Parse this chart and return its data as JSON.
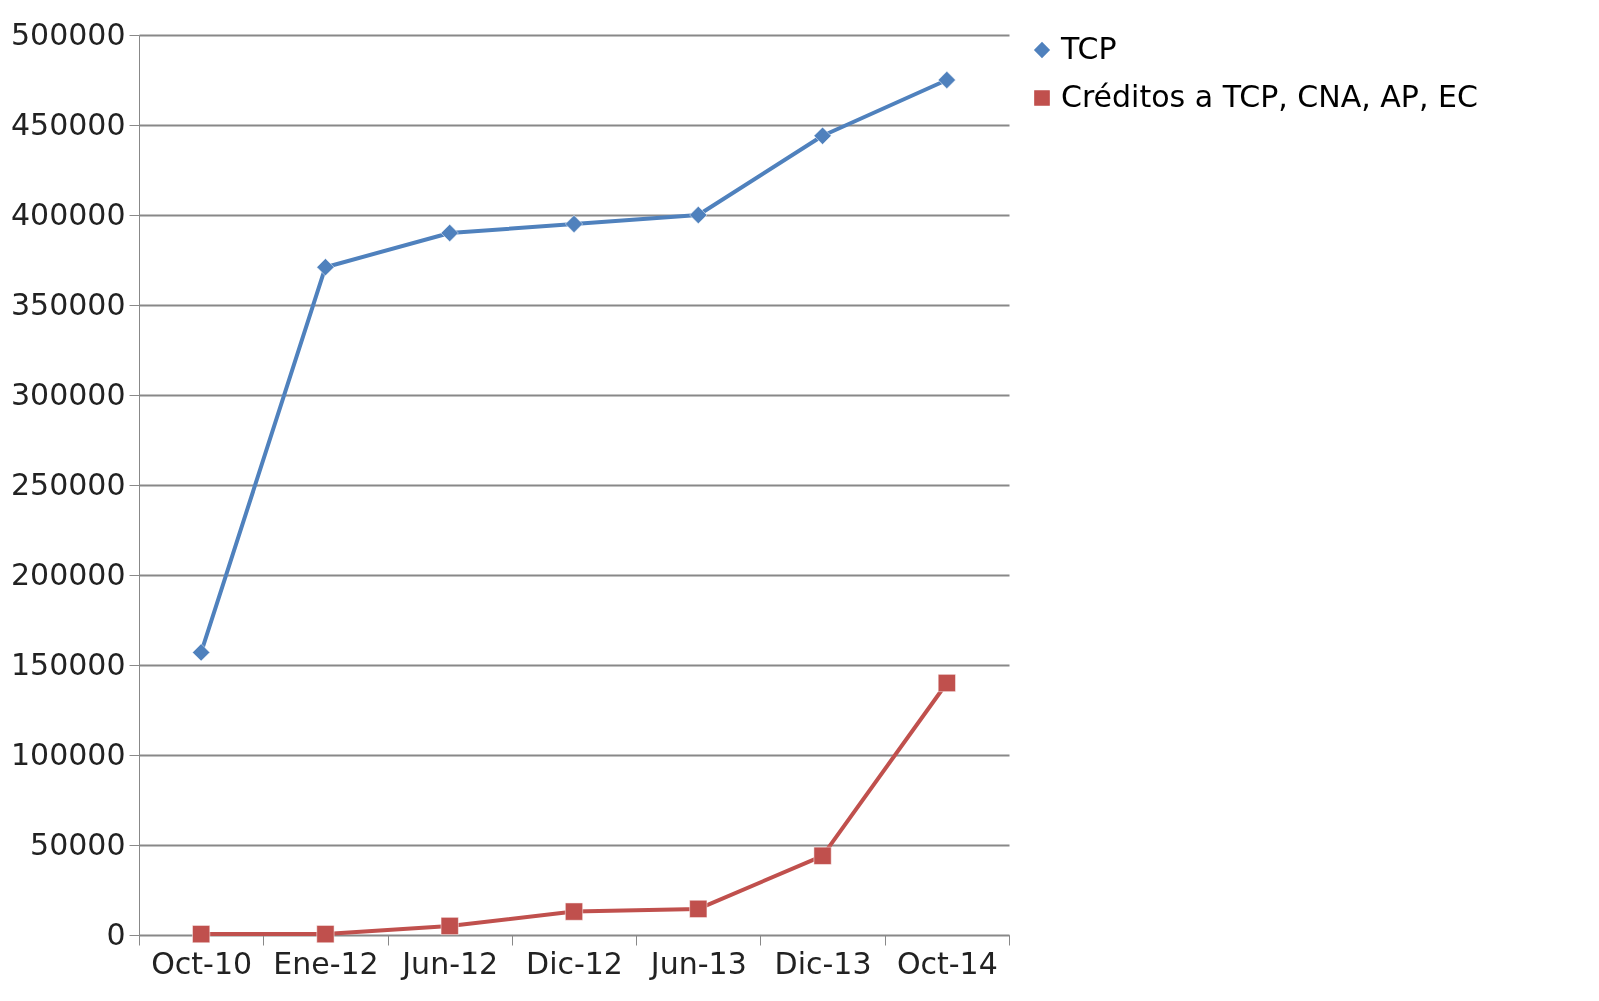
{
  "chart_data": {
    "type": "line",
    "categories": [
      "Oct-10",
      "Ene-12",
      "Jun-12",
      "Dic-12",
      "Jun-13",
      "Dic-13",
      "Oct-14"
    ],
    "series": [
      {
        "name": "TCP",
        "color": "#4f81bd",
        "marker": "diamond",
        "values": [
          157000,
          371000,
          390000,
          395000,
          400000,
          444000,
          475000
        ]
      },
      {
        "name": "Créditos a TCP, CNA, AP, EC",
        "color": "#c0504d",
        "marker": "square",
        "values": [
          500,
          500,
          5000,
          13000,
          14500,
          44000,
          140000
        ]
      }
    ],
    "ylim": [
      0,
      500000
    ],
    "yticks": [
      0,
      50000,
      100000,
      150000,
      200000,
      250000,
      300000,
      350000,
      400000,
      450000,
      500000
    ],
    "grid": "y",
    "legend": "right"
  }
}
